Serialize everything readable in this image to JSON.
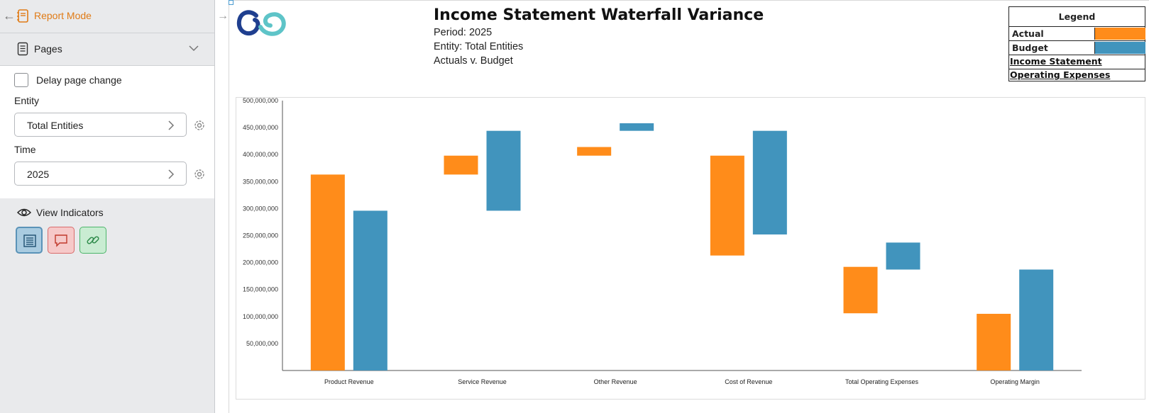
{
  "sidebar": {
    "report_mode_label": "Report Mode",
    "pages_label": "Pages",
    "delay_label": "Delay page change",
    "entity_label": "Entity",
    "entity_value": "Total Entities",
    "time_label": "Time",
    "time_value": "2025",
    "view_indicators_label": "View Indicators"
  },
  "report": {
    "title": "Income Statement Waterfall Variance",
    "period": "Period: 2025",
    "entity": "Entity: Total Entities",
    "comparison": "Actuals v. Budget"
  },
  "legend": {
    "title": "Legend",
    "items": [
      {
        "label": "Actual",
        "color": "#ff8c1a"
      },
      {
        "label": "Budget",
        "color": "#4194bd"
      }
    ],
    "links": [
      "Income Statement",
      "Operating Expenses"
    ]
  },
  "colors": {
    "accent": "#e07b16",
    "actual": "#ff8c1a",
    "budget": "#4194bd"
  },
  "chart_data": {
    "type": "bar",
    "subtype": "waterfall",
    "categories": [
      "Product Revenue",
      "Service Revenue",
      "Other Revenue",
      "Cost of Revenue",
      "Total Operating Expenses",
      "Operating Margin"
    ],
    "series": [
      {
        "name": "Actual",
        "color": "#ff8c1a",
        "ranges": [
          [
            0,
            363000000
          ],
          [
            363000000,
            398000000
          ],
          [
            398000000,
            414000000
          ],
          [
            213000000,
            398000000
          ],
          [
            106000000,
            192000000
          ],
          [
            0,
            105000000
          ]
        ]
      },
      {
        "name": "Budget",
        "color": "#4194bd",
        "ranges": [
          [
            0,
            296000000
          ],
          [
            296000000,
            444000000
          ],
          [
            444000000,
            458000000
          ],
          [
            252000000,
            444000000
          ],
          [
            187000000,
            237000000
          ],
          [
            0,
            187000000
          ]
        ]
      }
    ],
    "yticks": [
      "50,000,000",
      "100,000,000",
      "150,000,000",
      "200,000,000",
      "250,000,000",
      "300,000,000",
      "350,000,000",
      "400,000,000",
      "450,000,000",
      "500,000,000"
    ],
    "ylim": [
      0,
      500000000
    ],
    "grid": false
  }
}
